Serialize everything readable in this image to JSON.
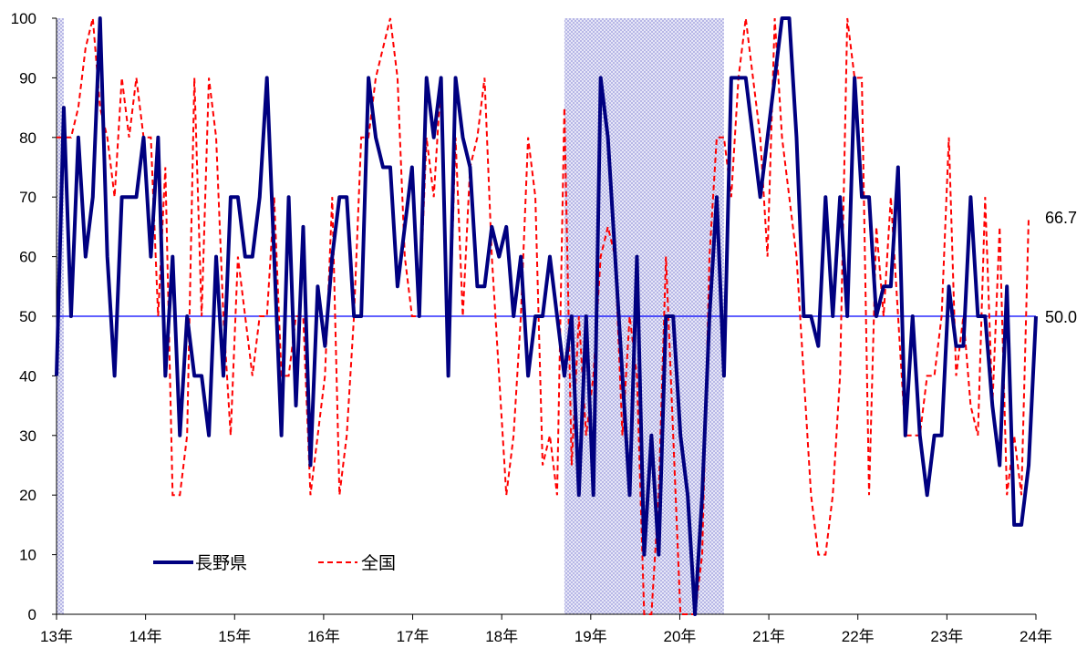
{
  "chart_data": {
    "type": "line",
    "title": "",
    "xlabel": "",
    "ylabel": "",
    "ylim": [
      0,
      100
    ],
    "yticks": [
      0,
      10,
      20,
      30,
      40,
      50,
      60,
      70,
      80,
      90,
      100
    ],
    "x_tick_labels": [
      "13年",
      "14年",
      "15年",
      "16年",
      "17年",
      "18年",
      "19年",
      "20年",
      "21年",
      "22年",
      "23年",
      "24年"
    ],
    "grid": false,
    "legend_position": "bottom-left",
    "reference_line": {
      "value": 50,
      "label": "50.0",
      "color": "#0000ff"
    },
    "shaded_periods": [
      {
        "start_index": 0,
        "end_index": 1
      },
      {
        "start_index": 70,
        "end_index": 92
      }
    ],
    "series": [
      {
        "name": "長野県",
        "color": "#000080",
        "style": "solid",
        "end_label": "",
        "values": [
          40,
          85,
          50,
          80,
          60,
          70,
          100,
          60,
          40,
          70,
          70,
          70,
          80,
          60,
          80,
          40,
          60,
          30,
          50,
          40,
          40,
          30,
          60,
          40,
          70,
          70,
          60,
          60,
          70,
          90,
          60,
          30,
          70,
          35,
          65,
          25,
          55,
          45,
          60,
          70,
          70,
          50,
          50,
          90,
          80,
          75,
          75,
          55,
          65,
          75,
          50,
          90,
          80,
          90,
          40,
          90,
          80,
          75,
          55,
          55,
          65,
          60,
          65,
          50,
          60,
          40,
          50,
          50,
          60,
          50,
          40,
          50,
          20,
          50,
          20,
          90,
          80,
          60,
          40,
          20,
          60,
          10,
          30,
          10,
          50,
          50,
          30,
          20,
          0,
          20,
          50,
          70,
          40,
          90,
          90,
          90,
          80,
          70,
          80,
          90,
          100,
          100,
          80,
          50,
          50,
          45,
          70,
          50,
          70,
          50,
          90,
          70,
          70,
          50,
          55,
          55,
          75,
          30,
          50,
          30,
          20,
          30,
          30,
          55,
          45,
          45,
          70,
          50,
          50,
          35,
          25,
          55,
          15,
          15,
          25,
          50
        ]
      },
      {
        "name": "全国",
        "color": "#ff0000",
        "style": "dashed",
        "end_label": "66.7",
        "values": [
          80,
          80,
          80,
          85,
          95,
          100,
          85,
          80,
          70,
          90,
          80,
          90,
          80,
          80,
          50,
          75,
          20,
          20,
          30,
          90,
          50,
          90,
          80,
          50,
          30,
          60,
          50,
          40,
          50,
          50,
          70,
          40,
          40,
          50,
          50,
          20,
          30,
          40,
          70,
          20,
          30,
          50,
          80,
          80,
          90,
          95,
          100,
          90,
          60,
          50,
          50,
          80,
          70,
          90,
          40,
          80,
          50,
          75,
          80,
          90,
          60,
          40,
          20,
          30,
          50,
          80,
          70,
          25,
          30,
          20,
          85,
          25,
          50,
          30,
          40,
          60,
          65,
          60,
          30,
          50,
          40,
          0,
          0,
          20,
          60,
          30,
          0,
          0,
          0,
          10,
          60,
          80,
          80,
          70,
          90,
          100,
          90,
          80,
          60,
          100,
          80,
          70,
          60,
          40,
          20,
          10,
          10,
          20,
          40,
          100,
          90,
          90,
          20,
          65,
          50,
          70,
          50,
          30,
          30,
          30,
          40,
          40,
          50,
          80,
          40,
          50,
          35,
          30,
          70,
          35,
          65,
          20,
          30,
          20,
          66.7
        ]
      }
    ]
  }
}
